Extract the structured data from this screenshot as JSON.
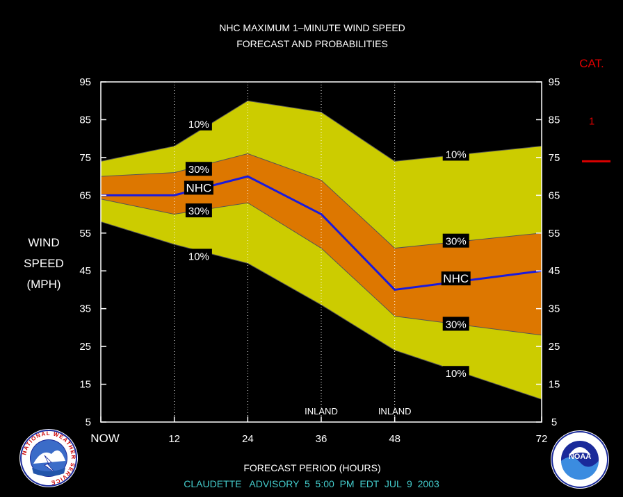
{
  "chart_data": {
    "type": "area",
    "title": "NHC MAXIMUM 1–MINUTE WIND SPEED",
    "subtitle": "FORECAST AND PROBABILITIES",
    "xlabel": "FORECAST PERIOD (HOURS)",
    "ylabel_lines": [
      "WIND",
      "SPEED",
      "(MPH)"
    ],
    "x_ticks": [
      {
        "x": 0,
        "label": "NOW"
      },
      {
        "x": 12,
        "label": "12"
      },
      {
        "x": 24,
        "label": "24"
      },
      {
        "x": 36,
        "label": "36"
      },
      {
        "x": 48,
        "label": "48"
      },
      {
        "x": 72,
        "label": "72"
      }
    ],
    "y_ticks": [
      5,
      15,
      25,
      35,
      45,
      55,
      65,
      75,
      85,
      95
    ],
    "xlim": [
      0,
      72
    ],
    "ylim": [
      5,
      95
    ],
    "x": [
      0,
      12,
      24,
      36,
      48,
      72
    ],
    "series": [
      {
        "name": "10%",
        "role": "upper",
        "values": [
          74,
          78,
          90,
          87,
          74,
          78
        ]
      },
      {
        "name": "30%",
        "role": "upper",
        "values": [
          70,
          71,
          76,
          69,
          51,
          55
        ]
      },
      {
        "name": "NHC",
        "values": [
          65,
          65,
          70,
          60,
          40,
          45
        ]
      },
      {
        "name": "30%",
        "role": "lower",
        "values": [
          64,
          60,
          63,
          51,
          33,
          28
        ]
      },
      {
        "name": "10%",
        "role": "lower",
        "values": [
          58,
          52,
          47,
          36,
          24,
          11
        ]
      }
    ],
    "labels": [
      {
        "text": "10%",
        "x": 16,
        "y": 84
      },
      {
        "text": "30%",
        "x": 16,
        "y": 72
      },
      {
        "text": "NHC",
        "x": 16,
        "y": 67
      },
      {
        "text": "30%",
        "x": 16,
        "y": 61
      },
      {
        "text": "10%",
        "x": 16,
        "y": 49
      },
      {
        "text": "10%",
        "x": 58,
        "y": 76
      },
      {
        "text": "30%",
        "x": 58,
        "y": 53
      },
      {
        "text": "NHC",
        "x": 58,
        "y": 43
      },
      {
        "text": "30%",
        "x": 58,
        "y": 31
      },
      {
        "text": "10%",
        "x": 58,
        "y": 18
      }
    ],
    "annotations": [
      {
        "text": "INLAND",
        "x": 36
      },
      {
        "text": "INLAND",
        "x": 48
      }
    ],
    "category_header": "CAT.",
    "categories": [
      {
        "label": "1",
        "threshold": 74
      }
    ],
    "grid": "vertical dotted at 12, 24, 36, 48",
    "colors": {
      "band_10": "#cccc00",
      "band_30": "#dd7700",
      "nhc_line": "#1a1add",
      "cat": "#dd0000",
      "footer": "#44cccc"
    }
  },
  "footer": "CLAUDETTE   ADVISORY  5  5:00  PM  EDT  JUL  9  2003",
  "logos": {
    "left": "NATIONAL WEATHER SERVICE",
    "right": "NOAA"
  }
}
